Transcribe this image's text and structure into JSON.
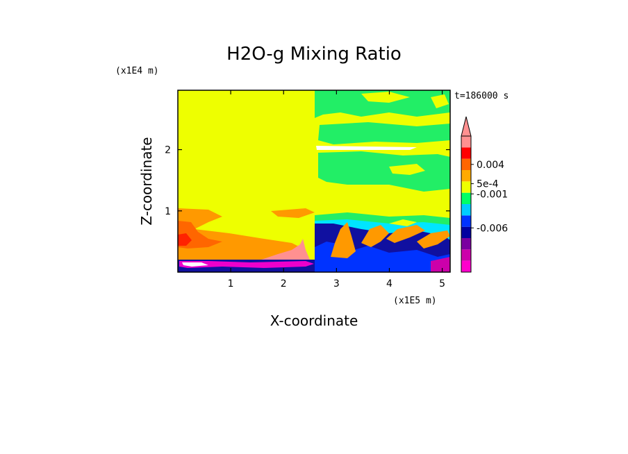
{
  "chart_data": {
    "type": "heatmap",
    "title": "H2O-g Mixing Ratio",
    "xlabel": "X-coordinate",
    "ylabel": "Z-coordinate",
    "x_units": "(x1E5 m)",
    "y_units": "(x1E4 m)",
    "time_label": "t=186000 s",
    "xlim": [
      0,
      5.15
    ],
    "ylim": [
      0,
      2.97
    ],
    "x_ticks": [
      1,
      2,
      3,
      4,
      5
    ],
    "y_ticks": [
      1,
      2
    ],
    "grid": false,
    "legend": "right colorbar",
    "colorbar": {
      "labels": [
        {
          "text": "0.004",
          "value": 0.004
        },
        {
          "text": "5e-4",
          "value": 0.0005
        },
        {
          "text": "-0.001",
          "value": -0.001
        },
        {
          "text": "-0.006",
          "value": -0.006
        }
      ],
      "colors": [
        "#ff00cc",
        "#cc00aa",
        "#7a00a0",
        "#0000a0",
        "#0033ff",
        "#00ccff",
        "#00ff66",
        "#eeff00",
        "#ffaa00",
        "#ff6600",
        "#ff0000",
        "#ff9090"
      ]
    },
    "regions": [
      {
        "name": "left-background",
        "color": "#eeff00"
      },
      {
        "name": "right-upper-green",
        "color": "#22ee66"
      },
      {
        "name": "orange-tongue",
        "color": "#ff9900"
      },
      {
        "name": "red-core",
        "color": "#ff2200"
      },
      {
        "name": "navy-boundary-layer",
        "color": "#1010a0"
      },
      {
        "name": "cyan-band",
        "color": "#00e5ff"
      },
      {
        "name": "magenta-surface",
        "color": "#ee00cc"
      }
    ]
  }
}
